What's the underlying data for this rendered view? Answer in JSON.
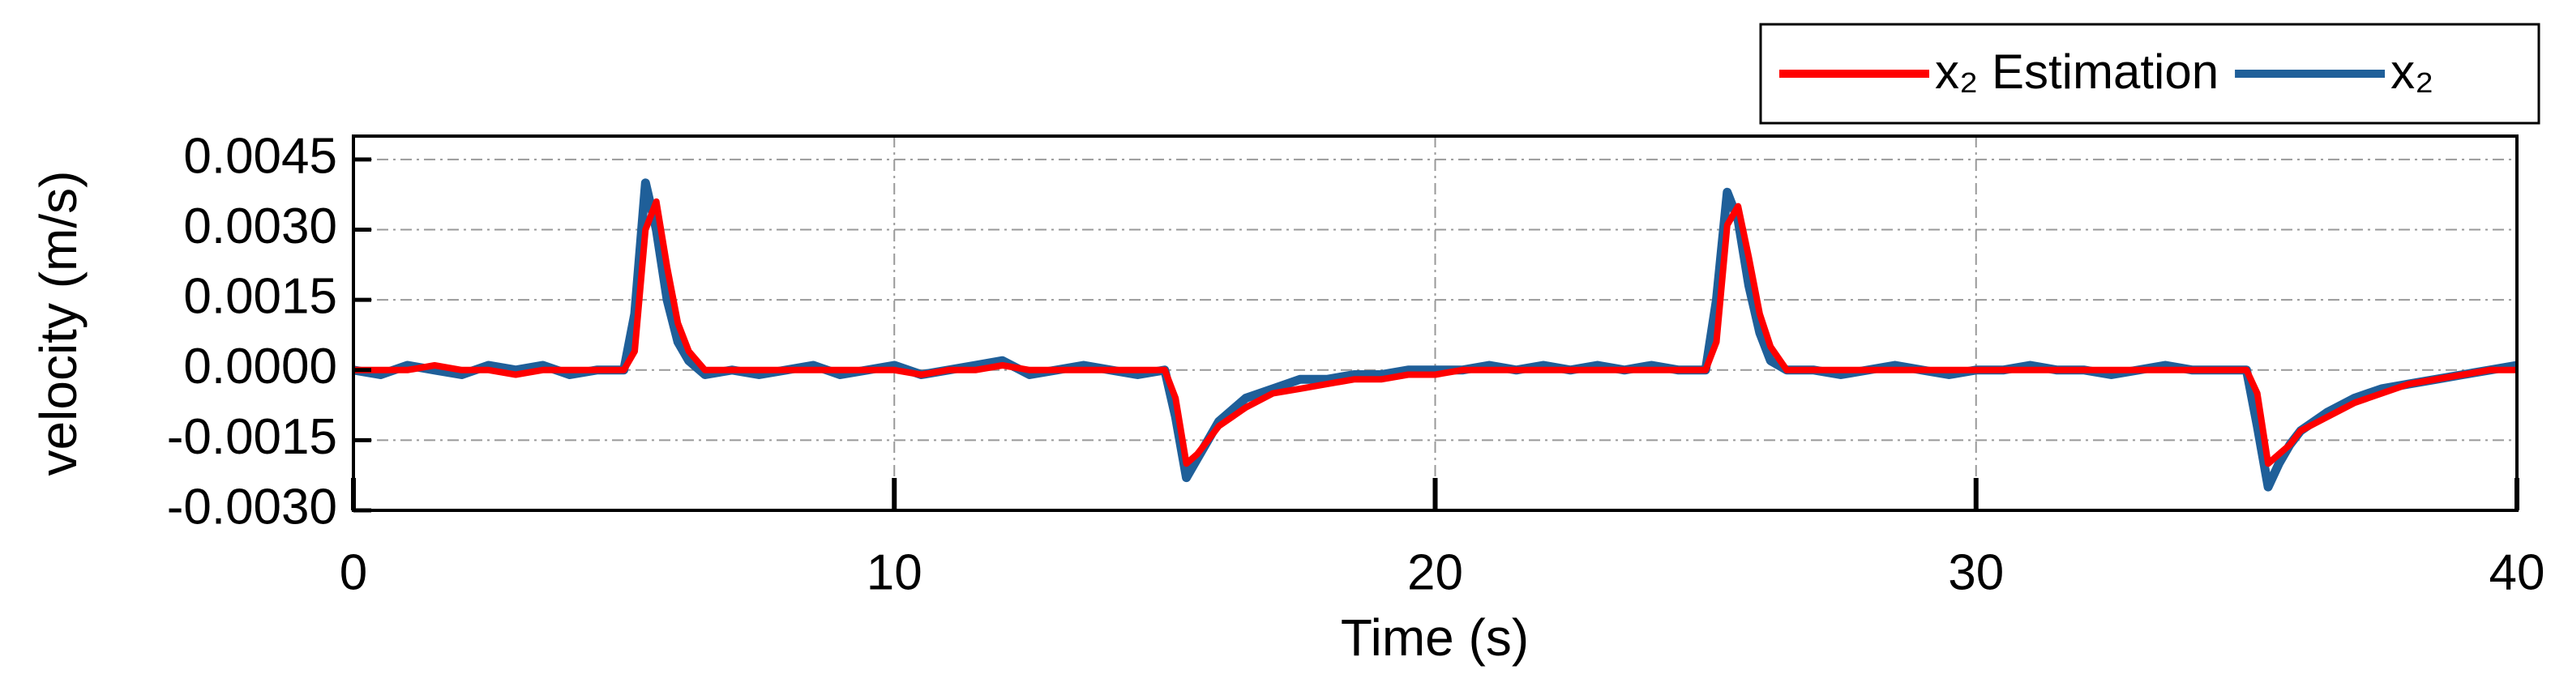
{
  "chart_data": {
    "type": "line",
    "xlabel": "Time (s)",
    "ylabel": "velocity (m/s)",
    "x": [
      0,
      0.5,
      1,
      1.5,
      2,
      2.5,
      3,
      3.5,
      4,
      4.5,
      5,
      5.2,
      5.4,
      5.6,
      5.8,
      6.0,
      6.2,
      6.5,
      7,
      7.5,
      8,
      8.5,
      9,
      9.5,
      10,
      10.5,
      11,
      11.5,
      12,
      12.5,
      13,
      13.5,
      14,
      14.5,
      15,
      15.2,
      15.4,
      15.6,
      15.8,
      16,
      16.5,
      17,
      17.5,
      18,
      18.5,
      19,
      19.5,
      20,
      20.5,
      21,
      21.5,
      22,
      22.5,
      23,
      23.5,
      24,
      24.5,
      25,
      25.2,
      25.4,
      25.6,
      25.8,
      26,
      26.2,
      26.5,
      27,
      27.5,
      28,
      28.5,
      29,
      29.5,
      30,
      30.5,
      31,
      31.5,
      32,
      32.5,
      33,
      33.5,
      34,
      34.5,
      35,
      35.2,
      35.4,
      35.6,
      35.8,
      36,
      36.5,
      37,
      37.5,
      38,
      38.5,
      39,
      39.5,
      40
    ],
    "series": [
      {
        "name": "x₂ Estimation",
        "color": "#ff0000",
        "values": [
          0,
          0,
          0,
          0.0001,
          0,
          0,
          -0.0001,
          0,
          0,
          0,
          0,
          0.0004,
          0.003,
          0.0036,
          0.0022,
          0.001,
          0.0004,
          0,
          0,
          0,
          0,
          0,
          0,
          0,
          0,
          -0.0001,
          0,
          0,
          0.0001,
          0,
          0,
          0,
          0,
          0,
          0,
          -0.0006,
          -0.002,
          -0.0018,
          -0.0015,
          -0.0012,
          -0.0008,
          -0.0005,
          -0.0004,
          -0.0003,
          -0.0002,
          -0.0002,
          -0.0001,
          -0.0001,
          0,
          0,
          0,
          0,
          0,
          0,
          0,
          0,
          0,
          0,
          0.0006,
          0.0031,
          0.0035,
          0.0024,
          0.0012,
          0.0005,
          0,
          0,
          0,
          0,
          0,
          0,
          0,
          0,
          0,
          0,
          0,
          0,
          0,
          0,
          0,
          0,
          0,
          0,
          -0.0005,
          -0.002,
          -0.0018,
          -0.0016,
          -0.0013,
          -0.001,
          -0.0007,
          -0.0005,
          -0.0003,
          -0.0002,
          -0.0001,
          0,
          0
        ]
      },
      {
        "name": "x₂",
        "color": "#1f5f99",
        "values": [
          0,
          -0.0001,
          0.0001,
          0,
          -0.0001,
          0.0001,
          0,
          0.0001,
          -0.0001,
          0,
          0,
          0.0012,
          0.004,
          0.003,
          0.0015,
          0.0006,
          0.0002,
          -0.0001,
          0,
          -0.0001,
          0,
          0.0001,
          -0.0001,
          0,
          0.0001,
          -0.0001,
          0,
          0.0001,
          0.0002,
          -0.0001,
          0,
          0.0001,
          0,
          -0.0001,
          0,
          -0.001,
          -0.0023,
          -0.0019,
          -0.0015,
          -0.0011,
          -0.0006,
          -0.0004,
          -0.0002,
          -0.0002,
          -0.0001,
          -0.0001,
          0,
          0,
          0,
          0.0001,
          0,
          0.0001,
          0,
          0.0001,
          0,
          0.0001,
          0,
          0,
          0.0015,
          0.0038,
          0.0032,
          0.0018,
          0.0008,
          0.0002,
          0,
          0,
          -0.0001,
          0,
          0.0001,
          0,
          -0.0001,
          0,
          0,
          0.0001,
          0,
          0,
          -0.0001,
          0,
          0.0001,
          0,
          0,
          0,
          -0.0012,
          -0.0025,
          -0.002,
          -0.0016,
          -0.0013,
          -0.0009,
          -0.0006,
          -0.0004,
          -0.0003,
          -0.0002,
          -0.0001,
          0,
          0.0001
        ]
      }
    ],
    "xlim": [
      0,
      40
    ],
    "xticks": [
      0,
      10,
      20,
      30,
      40
    ],
    "ylim": [
      -0.003,
      0.005
    ],
    "yticks": [
      {
        "value": -0.003,
        "label": "-0.0030"
      },
      -0.0015,
      {
        "value": 0,
        "label": "0.0000"
      },
      0.0015,
      {
        "value": 0.003,
        "label": "0.0030"
      },
      0.0045
    ],
    "grid": true,
    "legend": "top-right"
  }
}
